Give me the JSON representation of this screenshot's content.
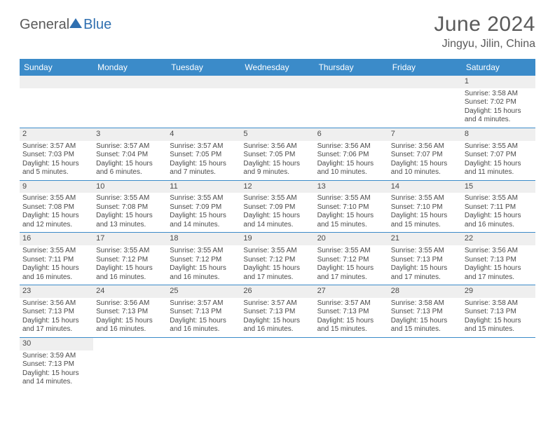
{
  "brand": {
    "part1": "General",
    "part2": "Blue"
  },
  "title": "June 2024",
  "location": "Jingyu, Jilin, China",
  "colors": {
    "header_bg": "#3b8bc9",
    "header_fg": "#ffffff",
    "daynum_bg": "#efefef",
    "border": "#3b8bc9",
    "text": "#4a4a4a",
    "brand_gray": "#5a5a5a",
    "brand_blue": "#2f6fb0"
  },
  "weekdays": [
    "Sunday",
    "Monday",
    "Tuesday",
    "Wednesday",
    "Thursday",
    "Friday",
    "Saturday"
  ],
  "weeks": [
    [
      null,
      null,
      null,
      null,
      null,
      null,
      {
        "n": "1",
        "sr": "Sunrise: 3:58 AM",
        "ss": "Sunset: 7:02 PM",
        "d1": "Daylight: 15 hours",
        "d2": "and 4 minutes."
      }
    ],
    [
      {
        "n": "2",
        "sr": "Sunrise: 3:57 AM",
        "ss": "Sunset: 7:03 PM",
        "d1": "Daylight: 15 hours",
        "d2": "and 5 minutes."
      },
      {
        "n": "3",
        "sr": "Sunrise: 3:57 AM",
        "ss": "Sunset: 7:04 PM",
        "d1": "Daylight: 15 hours",
        "d2": "and 6 minutes."
      },
      {
        "n": "4",
        "sr": "Sunrise: 3:57 AM",
        "ss": "Sunset: 7:05 PM",
        "d1": "Daylight: 15 hours",
        "d2": "and 7 minutes."
      },
      {
        "n": "5",
        "sr": "Sunrise: 3:56 AM",
        "ss": "Sunset: 7:05 PM",
        "d1": "Daylight: 15 hours",
        "d2": "and 9 minutes."
      },
      {
        "n": "6",
        "sr": "Sunrise: 3:56 AM",
        "ss": "Sunset: 7:06 PM",
        "d1": "Daylight: 15 hours",
        "d2": "and 10 minutes."
      },
      {
        "n": "7",
        "sr": "Sunrise: 3:56 AM",
        "ss": "Sunset: 7:07 PM",
        "d1": "Daylight: 15 hours",
        "d2": "and 10 minutes."
      },
      {
        "n": "8",
        "sr": "Sunrise: 3:55 AM",
        "ss": "Sunset: 7:07 PM",
        "d1": "Daylight: 15 hours",
        "d2": "and 11 minutes."
      }
    ],
    [
      {
        "n": "9",
        "sr": "Sunrise: 3:55 AM",
        "ss": "Sunset: 7:08 PM",
        "d1": "Daylight: 15 hours",
        "d2": "and 12 minutes."
      },
      {
        "n": "10",
        "sr": "Sunrise: 3:55 AM",
        "ss": "Sunset: 7:08 PM",
        "d1": "Daylight: 15 hours",
        "d2": "and 13 minutes."
      },
      {
        "n": "11",
        "sr": "Sunrise: 3:55 AM",
        "ss": "Sunset: 7:09 PM",
        "d1": "Daylight: 15 hours",
        "d2": "and 14 minutes."
      },
      {
        "n": "12",
        "sr": "Sunrise: 3:55 AM",
        "ss": "Sunset: 7:09 PM",
        "d1": "Daylight: 15 hours",
        "d2": "and 14 minutes."
      },
      {
        "n": "13",
        "sr": "Sunrise: 3:55 AM",
        "ss": "Sunset: 7:10 PM",
        "d1": "Daylight: 15 hours",
        "d2": "and 15 minutes."
      },
      {
        "n": "14",
        "sr": "Sunrise: 3:55 AM",
        "ss": "Sunset: 7:10 PM",
        "d1": "Daylight: 15 hours",
        "d2": "and 15 minutes."
      },
      {
        "n": "15",
        "sr": "Sunrise: 3:55 AM",
        "ss": "Sunset: 7:11 PM",
        "d1": "Daylight: 15 hours",
        "d2": "and 16 minutes."
      }
    ],
    [
      {
        "n": "16",
        "sr": "Sunrise: 3:55 AM",
        "ss": "Sunset: 7:11 PM",
        "d1": "Daylight: 15 hours",
        "d2": "and 16 minutes."
      },
      {
        "n": "17",
        "sr": "Sunrise: 3:55 AM",
        "ss": "Sunset: 7:12 PM",
        "d1": "Daylight: 15 hours",
        "d2": "and 16 minutes."
      },
      {
        "n": "18",
        "sr": "Sunrise: 3:55 AM",
        "ss": "Sunset: 7:12 PM",
        "d1": "Daylight: 15 hours",
        "d2": "and 16 minutes."
      },
      {
        "n": "19",
        "sr": "Sunrise: 3:55 AM",
        "ss": "Sunset: 7:12 PM",
        "d1": "Daylight: 15 hours",
        "d2": "and 17 minutes."
      },
      {
        "n": "20",
        "sr": "Sunrise: 3:55 AM",
        "ss": "Sunset: 7:12 PM",
        "d1": "Daylight: 15 hours",
        "d2": "and 17 minutes."
      },
      {
        "n": "21",
        "sr": "Sunrise: 3:55 AM",
        "ss": "Sunset: 7:13 PM",
        "d1": "Daylight: 15 hours",
        "d2": "and 17 minutes."
      },
      {
        "n": "22",
        "sr": "Sunrise: 3:56 AM",
        "ss": "Sunset: 7:13 PM",
        "d1": "Daylight: 15 hours",
        "d2": "and 17 minutes."
      }
    ],
    [
      {
        "n": "23",
        "sr": "Sunrise: 3:56 AM",
        "ss": "Sunset: 7:13 PM",
        "d1": "Daylight: 15 hours",
        "d2": "and 17 minutes."
      },
      {
        "n": "24",
        "sr": "Sunrise: 3:56 AM",
        "ss": "Sunset: 7:13 PM",
        "d1": "Daylight: 15 hours",
        "d2": "and 16 minutes."
      },
      {
        "n": "25",
        "sr": "Sunrise: 3:57 AM",
        "ss": "Sunset: 7:13 PM",
        "d1": "Daylight: 15 hours",
        "d2": "and 16 minutes."
      },
      {
        "n": "26",
        "sr": "Sunrise: 3:57 AM",
        "ss": "Sunset: 7:13 PM",
        "d1": "Daylight: 15 hours",
        "d2": "and 16 minutes."
      },
      {
        "n": "27",
        "sr": "Sunrise: 3:57 AM",
        "ss": "Sunset: 7:13 PM",
        "d1": "Daylight: 15 hours",
        "d2": "and 15 minutes."
      },
      {
        "n": "28",
        "sr": "Sunrise: 3:58 AM",
        "ss": "Sunset: 7:13 PM",
        "d1": "Daylight: 15 hours",
        "d2": "and 15 minutes."
      },
      {
        "n": "29",
        "sr": "Sunrise: 3:58 AM",
        "ss": "Sunset: 7:13 PM",
        "d1": "Daylight: 15 hours",
        "d2": "and 15 minutes."
      }
    ],
    [
      {
        "n": "30",
        "sr": "Sunrise: 3:59 AM",
        "ss": "Sunset: 7:13 PM",
        "d1": "Daylight: 15 hours",
        "d2": "and 14 minutes."
      },
      null,
      null,
      null,
      null,
      null,
      null
    ]
  ]
}
